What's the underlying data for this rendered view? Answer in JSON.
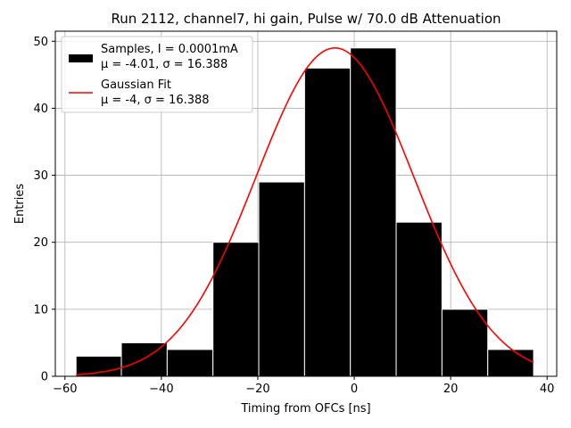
{
  "chart_data": {
    "type": "bar",
    "title": "Run 2112, channel7, hi gain, Pulse w/ 70.0 dB Attenuation",
    "xlabel": "Timing from OFCs [ns]",
    "ylabel": "Entries",
    "xlim": [
      -62,
      42
    ],
    "ylim": [
      0,
      51.5
    ],
    "xticks": [
      -60,
      -40,
      -20,
      0,
      20,
      40
    ],
    "yticks": [
      0,
      10,
      20,
      30,
      40,
      50
    ],
    "grid": true,
    "legend_position": "upper-left",
    "histogram": {
      "name": "Samples, I = 0.0001mA",
      "stats": "μ = -4.01, σ = 16.388",
      "color": "#000000",
      "bins": [
        {
          "x0": -57.7,
          "x1": -48.3,
          "count": 3
        },
        {
          "x0": -48.3,
          "x1": -38.8,
          "count": 5
        },
        {
          "x0": -38.8,
          "x1": -29.3,
          "count": 4
        },
        {
          "x0": -29.3,
          "x1": -19.8,
          "count": 20
        },
        {
          "x0": -19.8,
          "x1": -10.3,
          "count": 29
        },
        {
          "x0": -10.3,
          "x1": -0.8,
          "count": 46
        },
        {
          "x0": -0.8,
          "x1": 8.7,
          "count": 49
        },
        {
          "x0": 8.7,
          "x1": 18.2,
          "count": 23
        },
        {
          "x0": 18.2,
          "x1": 27.7,
          "count": 10
        },
        {
          "x0": 27.7,
          "x1": 37.2,
          "count": 4
        }
      ]
    },
    "fit": {
      "name": "Gaussian Fit",
      "stats": "μ = -4, σ = 16.388",
      "color": "#ff0000",
      "mu": -4,
      "sigma": 16.388,
      "amplitude": 49,
      "x_range": [
        -57.7,
        37.2
      ]
    }
  }
}
